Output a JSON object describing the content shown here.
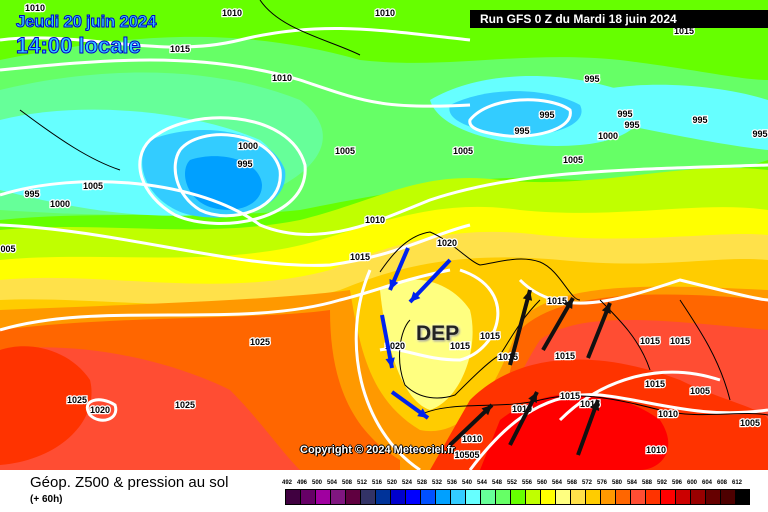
{
  "header": {
    "date": "Jeudi 20 juin 2024",
    "time": "14:00 locale",
    "run": "Run GFS 0 Z du Mardi 18 juin 2024"
  },
  "map": {
    "copyright": "Copyright © 2024 Meteociel.fr",
    "annotation": "DEP",
    "isobar_labels": [
      "1010",
      "1010",
      "1010",
      "1015",
      "1010",
      "995",
      "995",
      "995",
      "995",
      "995",
      "1000",
      "995",
      "995",
      "1000",
      "1005",
      "1005",
      "1005",
      "995",
      "1005",
      "995",
      "1000",
      "1010",
      "1020",
      "1015",
      "005",
      "1015",
      "1025",
      "1020",
      "1015",
      "1015",
      "1015",
      "1015",
      "1015",
      "1015",
      "1015",
      "1005",
      "1025",
      "1020",
      "1025",
      "1015",
      "1015",
      "1010",
      "1010",
      "1005",
      "1010",
      "10505",
      "1010",
      "1015"
    ],
    "arrow_colors": {
      "advection_in": "#0022ee",
      "advection_out": "#111111"
    }
  },
  "footer": {
    "title": "Géop. Z500 & pression au sol",
    "subtitle": "(+ 60h)"
  },
  "legend": {
    "labels": [
      "492",
      "496",
      "500",
      "504",
      "508",
      "512",
      "516",
      "520",
      "524",
      "528",
      "532",
      "536",
      "540",
      "544",
      "548",
      "552",
      "556",
      "560",
      "564",
      "568",
      "572",
      "576",
      "580",
      "584",
      "588",
      "592",
      "596",
      "600",
      "604",
      "608",
      "612"
    ],
    "colors": [
      "#400040",
      "#660066",
      "#a000a0",
      "#801680",
      "#600040",
      "#333366",
      "#003399",
      "#0000cc",
      "#0000ff",
      "#0050ff",
      "#00a0ff",
      "#33ccff",
      "#66ffff",
      "#66ff99",
      "#66ff66",
      "#66ff00",
      "#c0ff00",
      "#ffff00",
      "#ffff80",
      "#ffe14a",
      "#ffcc00",
      "#ff9900",
      "#ff6600",
      "#ff4d33",
      "#ff3300",
      "#ff0000",
      "#cc0000",
      "#990000",
      "#660000",
      "#4d0000",
      "#000000"
    ]
  }
}
